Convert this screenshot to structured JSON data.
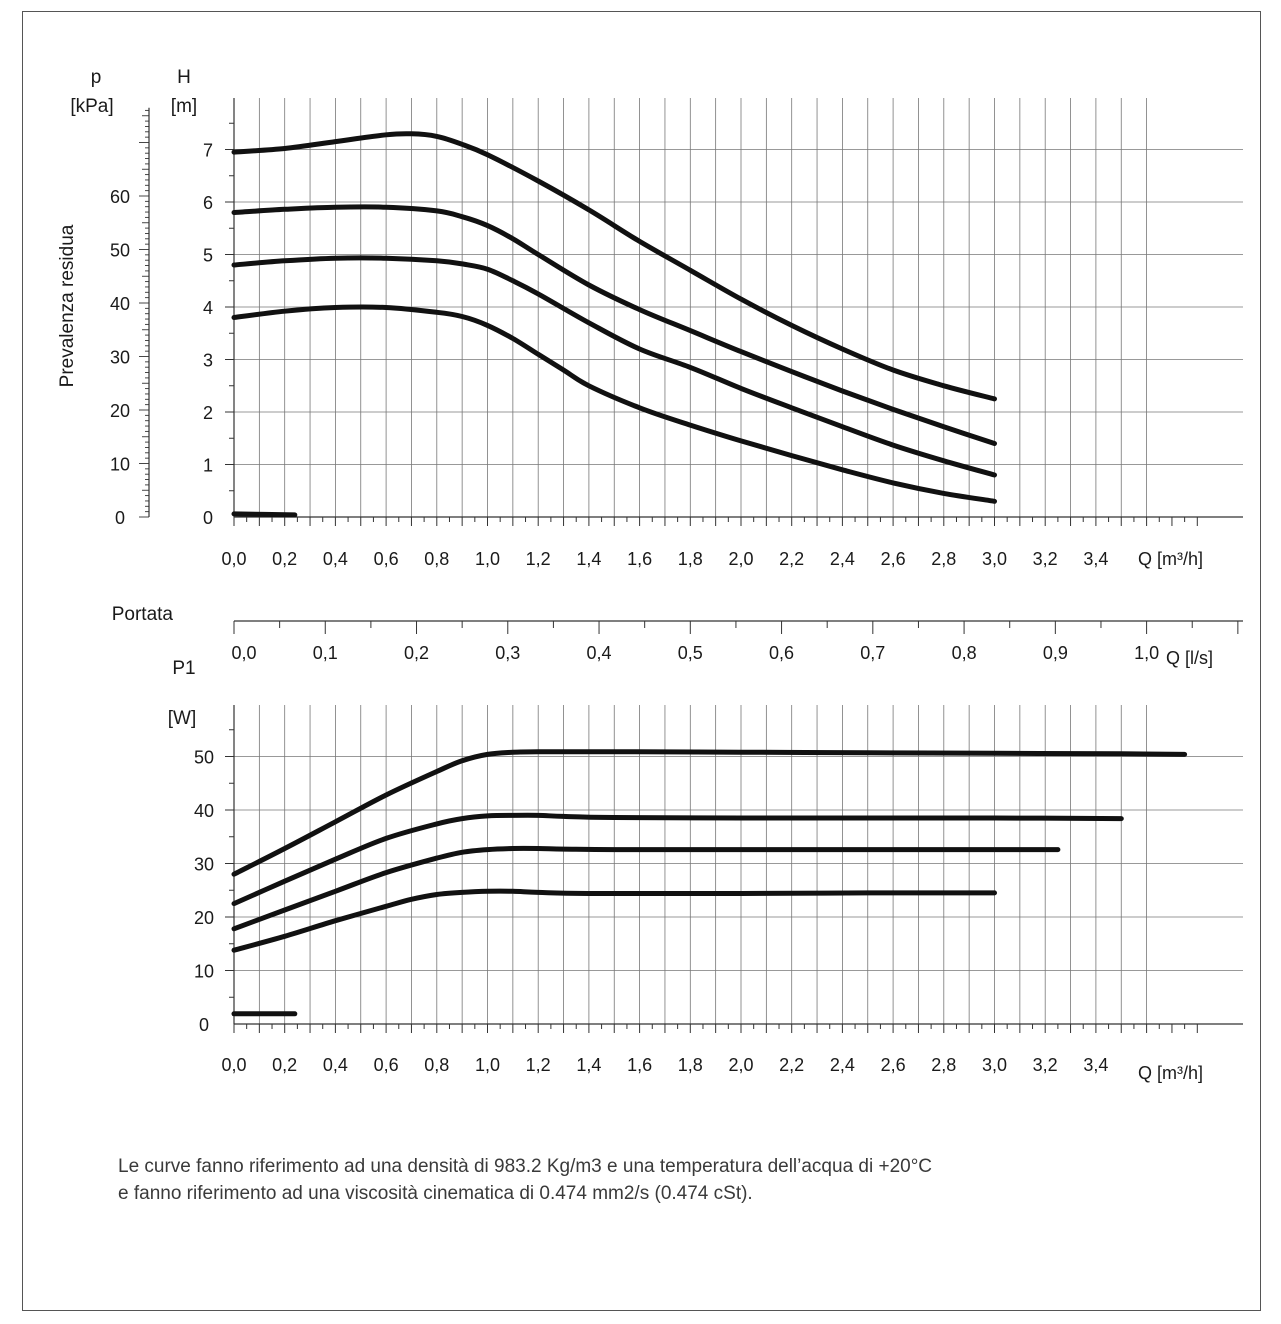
{
  "chart_data": [
    {
      "type": "line",
      "xlabel": "Q [m³/h]",
      "ylabel": "Prevalenza residua",
      "left_axis_unit_symbol": "p",
      "left_axis_unit": "[kPa]",
      "right_axis_symbol": "H",
      "right_axis_unit": "[m]",
      "xlim": [
        0,
        3.8
      ],
      "ylim_m": [
        0,
        7.8
      ],
      "ylim_kpa": [
        0,
        76.5
      ],
      "grid": true,
      "x_ticks": [
        "0,0",
        "0,2",
        "0,4",
        "0,6",
        "0,8",
        "1,0",
        "1,2",
        "1,4",
        "1,6",
        "1,8",
        "2,0",
        "2,2",
        "2,4",
        "2,6",
        "2,8",
        "3,0",
        "3,2",
        "3,4"
      ],
      "y_ticks_m": [
        "0",
        "1",
        "2",
        "3",
        "4",
        "5",
        "6",
        "7"
      ],
      "y_ticks_kpa": [
        "0",
        "10",
        "20",
        "30",
        "40",
        "50",
        "60"
      ],
      "series": [
        {
          "x": [
            0,
            0.2,
            0.4,
            0.6,
            0.7,
            0.8,
            0.9,
            1.0,
            1.2,
            1.4,
            1.6,
            1.8,
            2.0,
            2.2,
            2.4,
            2.6,
            2.8,
            3.0
          ],
          "values": [
            6.95,
            7.02,
            7.15,
            7.28,
            7.3,
            7.25,
            7.1,
            6.9,
            6.4,
            5.85,
            5.25,
            4.7,
            4.15,
            3.65,
            3.2,
            2.8,
            2.5,
            2.25
          ]
        },
        {
          "x": [
            0,
            0.2,
            0.4,
            0.6,
            0.8,
            0.9,
            1.0,
            1.1,
            1.2,
            1.4,
            1.6,
            1.8,
            2.0,
            2.2,
            2.4,
            2.6,
            2.8,
            3.0
          ],
          "values": [
            5.8,
            5.86,
            5.9,
            5.9,
            5.83,
            5.72,
            5.55,
            5.3,
            5.0,
            4.42,
            3.95,
            3.55,
            3.15,
            2.77,
            2.4,
            2.05,
            1.72,
            1.4
          ]
        },
        {
          "x": [
            0,
            0.2,
            0.4,
            0.6,
            0.8,
            0.9,
            1.0,
            1.1,
            1.2,
            1.4,
            1.6,
            1.8,
            2.0,
            2.2,
            2.4,
            2.6,
            2.8,
            3.0
          ],
          "values": [
            4.8,
            4.88,
            4.93,
            4.93,
            4.88,
            4.82,
            4.72,
            4.5,
            4.25,
            3.7,
            3.2,
            2.85,
            2.45,
            2.08,
            1.72,
            1.37,
            1.07,
            0.8
          ]
        },
        {
          "x": [
            0,
            0.2,
            0.4,
            0.6,
            0.8,
            0.9,
            1.0,
            1.1,
            1.2,
            1.3,
            1.4,
            1.6,
            1.8,
            2.0,
            2.2,
            2.4,
            2.6,
            2.8,
            3.0
          ],
          "values": [
            3.8,
            3.92,
            3.99,
            3.99,
            3.9,
            3.82,
            3.65,
            3.4,
            3.1,
            2.8,
            2.5,
            2.08,
            1.75,
            1.45,
            1.17,
            0.9,
            0.65,
            0.45,
            0.3
          ]
        },
        {
          "x": [
            0,
            0.24
          ],
          "values": [
            0.06,
            0.04
          ]
        }
      ]
    },
    {
      "type": "axis",
      "label": "Portata",
      "xlabel": "Q [l/s]",
      "xlim": [
        0,
        1.1
      ],
      "x_ticks": [
        "0,0",
        "0,1",
        "0,2",
        "0,3",
        "0,4",
        "0,5",
        "0,6",
        "0,7",
        "0,8",
        "0,9",
        "1,0"
      ]
    },
    {
      "type": "line",
      "ylabel_symbol": "P1",
      "ylabel_unit": "[W]",
      "xlabel": "Q [m³/h]",
      "xlim": [
        0,
        3.8
      ],
      "ylim": [
        0,
        59
      ],
      "grid": true,
      "x_ticks": [
        "0,0",
        "0,2",
        "0,4",
        "0,6",
        "0,8",
        "1,0",
        "1,2",
        "1,4",
        "1,6",
        "1,8",
        "2,0",
        "2,2",
        "2,4",
        "2,6",
        "2,8",
        "3,0",
        "3,2",
        "3,4"
      ],
      "y_ticks": [
        "0",
        "10",
        "20",
        "30",
        "40",
        "50"
      ],
      "series": [
        {
          "x": [
            0,
            0.2,
            0.4,
            0.6,
            0.8,
            0.9,
            1.0,
            1.1,
            1.2,
            1.5,
            2.0,
            2.5,
            3.0,
            3.5,
            3.75
          ],
          "values": [
            28,
            32.8,
            37.8,
            42.8,
            47.2,
            49.2,
            50.4,
            50.8,
            50.9,
            50.9,
            50.8,
            50.7,
            50.6,
            50.5,
            50.4
          ]
        },
        {
          "x": [
            0,
            0.2,
            0.4,
            0.6,
            0.8,
            0.9,
            1.0,
            1.1,
            1.2,
            1.3,
            1.5,
            2.0,
            2.5,
            3.0,
            3.5
          ],
          "values": [
            22.5,
            26.7,
            30.8,
            34.7,
            37.4,
            38.4,
            38.9,
            39.0,
            39.0,
            38.8,
            38.6,
            38.5,
            38.5,
            38.5,
            38.4
          ]
        },
        {
          "x": [
            0,
            0.2,
            0.4,
            0.6,
            0.8,
            0.9,
            1.0,
            1.1,
            1.2,
            1.3,
            1.5,
            2.0,
            2.5,
            3.0,
            3.25
          ],
          "values": [
            17.8,
            21.3,
            24.8,
            28.3,
            31.0,
            32.1,
            32.6,
            32.8,
            32.8,
            32.7,
            32.6,
            32.6,
            32.6,
            32.6,
            32.6
          ]
        },
        {
          "x": [
            0,
            0.2,
            0.4,
            0.6,
            0.7,
            0.8,
            0.9,
            1.0,
            1.1,
            1.2,
            1.4,
            2.0,
            2.5,
            3.0
          ],
          "values": [
            13.8,
            16.4,
            19.3,
            22.0,
            23.3,
            24.2,
            24.6,
            24.8,
            24.8,
            24.6,
            24.4,
            24.4,
            24.5,
            24.5
          ]
        },
        {
          "x": [
            0,
            0.24
          ],
          "values": [
            1.9,
            1.9
          ]
        }
      ]
    }
  ],
  "note": {
    "line1": "Le curve fanno riferimento ad una densità di 983.2 Kg/m3 e una temperatura dell’acqua di +20°C",
    "line2": "e fanno riferimento ad una viscosità cinematica di 0.474 mm2/s (0.474 cSt)."
  }
}
